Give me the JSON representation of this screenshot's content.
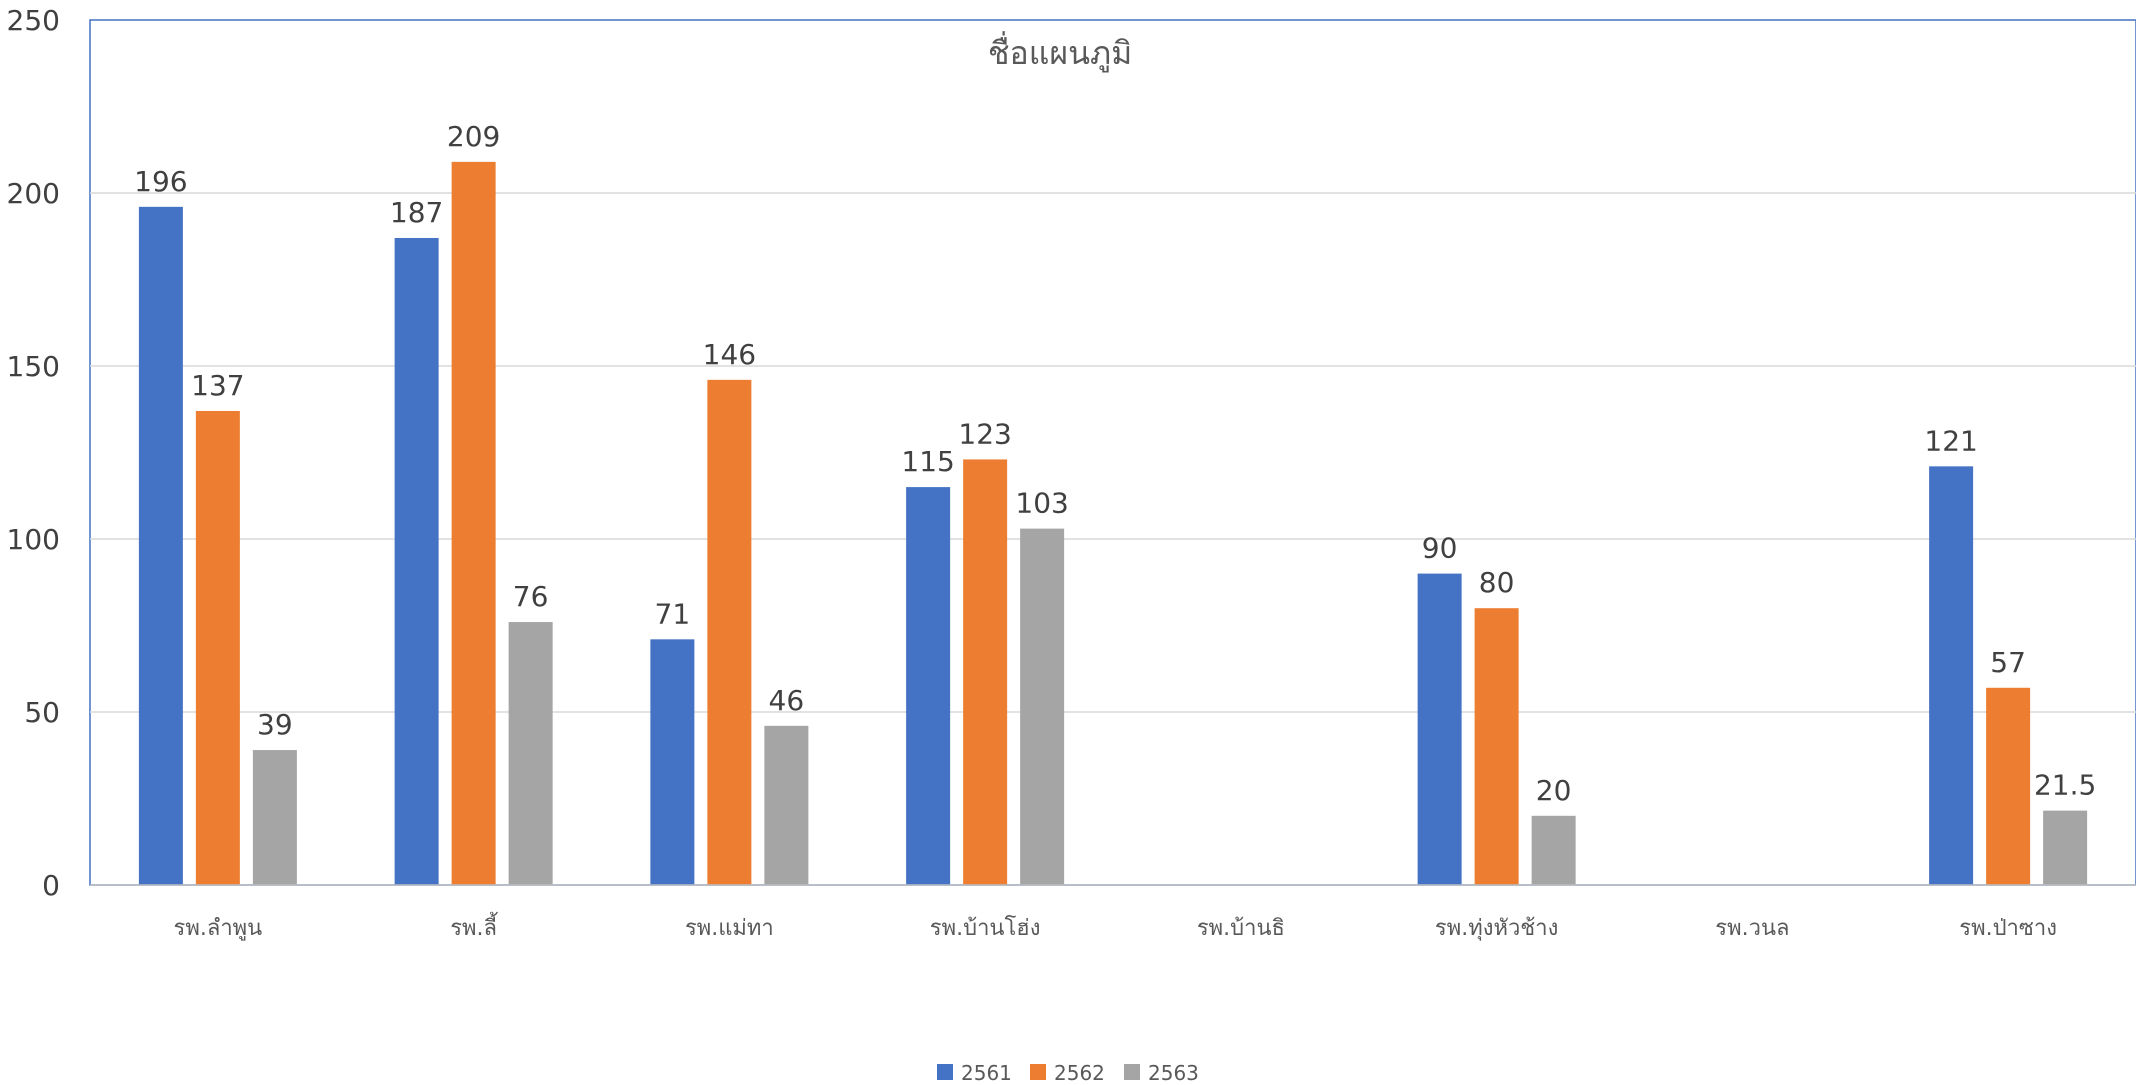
{
  "chart_data": {
    "type": "bar",
    "title": "ชื่อแผนภูมิ",
    "categories": [
      "รพ.ลำพูน",
      "รพ.ลี้",
      "รพ.แม่ทา",
      "รพ.บ้านโฮ่ง",
      "รพ.บ้านธิ",
      "รพ.ทุ่งหัวช้าง",
      "รพ.วนล",
      "รพ.ป่าซาง"
    ],
    "series": [
      {
        "name": "2561",
        "color": "#4472C4",
        "values": [
          196,
          187,
          71,
          115,
          null,
          90,
          null,
          121
        ]
      },
      {
        "name": "2562",
        "color": "#ED7D31",
        "values": [
          137,
          209,
          146,
          123,
          null,
          80,
          null,
          57
        ]
      },
      {
        "name": "2563",
        "color": "#A5A5A5",
        "values": [
          39,
          76,
          46,
          103,
          null,
          20,
          null,
          21.5
        ]
      }
    ],
    "ylim": [
      0,
      250
    ],
    "yticks": [
      0,
      50,
      100,
      150,
      200,
      250
    ],
    "grid": true,
    "legend_position": "bottom",
    "data_labels": true
  }
}
